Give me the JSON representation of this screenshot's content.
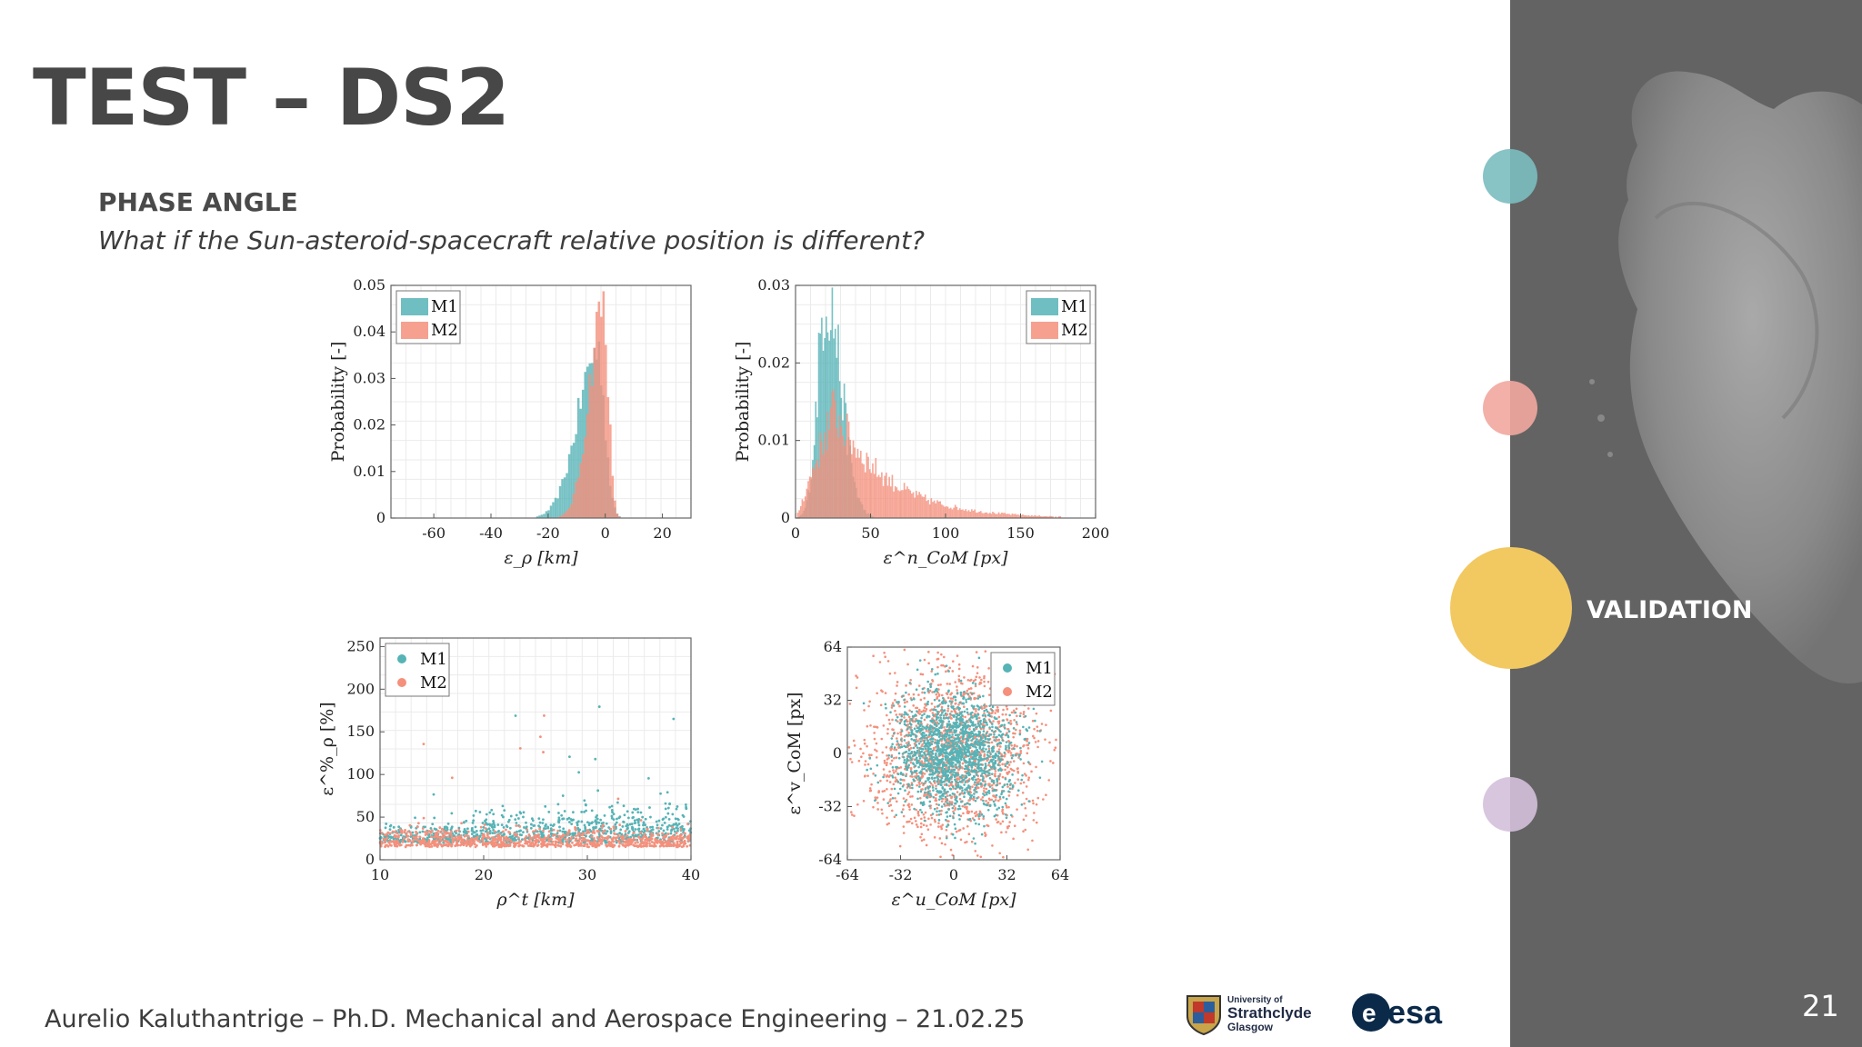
{
  "slide": {
    "title": "TEST – DS2",
    "section_heading": "PHASE ANGLE",
    "section_subtitle": "What if the Sun-asteroid-spacecraft relative position is different?",
    "footer": "Aurelio Kaluthantrige – Ph.D. Mechanical and Aerospace Engineering – 21.02.25",
    "page_number": "21"
  },
  "nav": {
    "items": [
      {
        "label": "",
        "color": "#7bbdbf"
      },
      {
        "label": "",
        "color": "#f1a79f"
      },
      {
        "label": "VALIDATION",
        "color": "#f2c861",
        "active": true
      },
      {
        "label": "",
        "color": "#d4c0dc"
      }
    ]
  },
  "logos": {
    "strathclyde": {
      "line1": "University of",
      "line2": "Strathclyde",
      "line3": "Glasgow"
    },
    "esa": "esa"
  },
  "colors": {
    "M1": "#56b3b6",
    "M2": "#f4907c",
    "panel": "#636363"
  },
  "chart_data": [
    {
      "type": "histogram",
      "xlabel": "ε_ρ [km]",
      "ylabel": "Probability [-]",
      "xlim": [
        -75,
        30
      ],
      "ylim": [
        0,
        0.05
      ],
      "xticks": [
        "-60",
        "-40",
        "-20",
        "0",
        "20"
      ],
      "yticks": [
        "0",
        "0.01",
        "0.02",
        "0.03",
        "0.04",
        "0.05"
      ],
      "legend": [
        "M1",
        "M2"
      ],
      "legend_position": "top-left",
      "grid": true,
      "series": [
        {
          "name": "M1",
          "peak_x": -3,
          "peak": 0.036,
          "spread": 5
        },
        {
          "name": "M2",
          "peak_x": -1,
          "peak": 0.046,
          "spread": 3.5
        }
      ]
    },
    {
      "type": "histogram",
      "xlabel": "ε^n_CoM [px]",
      "ylabel": "Probability [-]",
      "xlim": [
        0,
        200
      ],
      "ylim": [
        0,
        0.03
      ],
      "xticks": [
        "0",
        "50",
        "100",
        "150",
        "200"
      ],
      "yticks": [
        "0",
        "0.01",
        "0.02",
        "0.03"
      ],
      "legend": [
        "M1",
        "M2"
      ],
      "legend_position": "top-right",
      "grid": true,
      "series": [
        {
          "name": "M1",
          "peak_x": 20,
          "peak": 0.029
        },
        {
          "name": "M2",
          "peak_x": 25,
          "peak": 0.014
        }
      ]
    },
    {
      "type": "scatter",
      "xlabel": "ρ^t [km]",
      "ylabel": "ε^%_ρ [%]",
      "xlim": [
        10,
        40
      ],
      "ylim": [
        0,
        260
      ],
      "xticks": [
        "10",
        "20",
        "30",
        "40"
      ],
      "yticks": [
        "0",
        "50",
        "100",
        "150",
        "200",
        "250"
      ],
      "legend": [
        "M1",
        "M2"
      ],
      "legend_position": "top-left",
      "grid": true,
      "series": [
        {
          "name": "M1",
          "mean_y": 20,
          "spread_y": 15
        },
        {
          "name": "M2",
          "mean_y": 15,
          "spread_y": 12
        }
      ]
    },
    {
      "type": "scatter",
      "xlabel": "ε^u_CoM [px]",
      "ylabel": "ε^v_CoM [px]",
      "xlim": [
        -64,
        64
      ],
      "ylim": [
        -64,
        64
      ],
      "xticks": [
        "-64",
        "-32",
        "0",
        "32",
        "64"
      ],
      "yticks": [
        "-64",
        "-32",
        "0",
        "32",
        "64"
      ],
      "legend": [
        "M1",
        "M2"
      ],
      "legend_position": "top-right",
      "grid": false,
      "series": [
        {
          "name": "M1",
          "std": 18
        },
        {
          "name": "M2",
          "std": 26
        }
      ]
    }
  ]
}
